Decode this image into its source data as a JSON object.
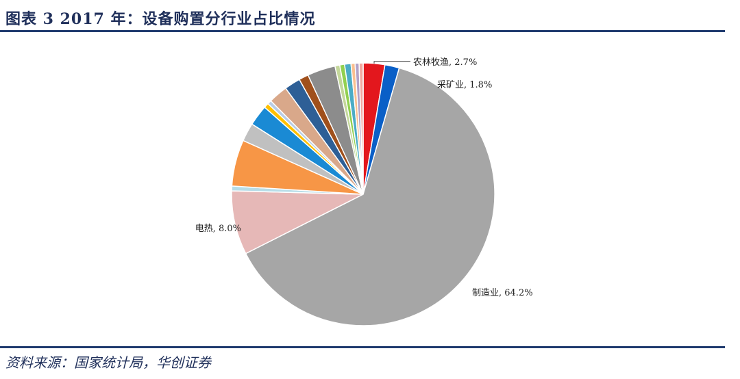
{
  "header": {
    "title": "图表 3   2017 年：设备购置分行业占比情况"
  },
  "footer": {
    "source": "资料来源：国家统计局，华创证券"
  },
  "chart_data": {
    "type": "pie",
    "title": "2017 年：设备购置分行业占比情况",
    "start_direction": "top",
    "direction": "clockwise",
    "slices": [
      {
        "label": "农林牧渔",
        "value": 2.7,
        "label_text": "农林牧渔, 2.7%",
        "color": "#e3171d"
      },
      {
        "label": "采矿业",
        "value": 1.8,
        "label_text": "采矿业, 1.8%",
        "color": "#0a5fc7"
      },
      {
        "label": "制造业",
        "value": 64.2,
        "label_text": "制造业, 64.2%",
        "color": "#a6a6a6"
      },
      {
        "label": "电热",
        "value": 8.0,
        "label_text": "电热, 8.0%",
        "color": "#e6b8b7"
      },
      {
        "label": "",
        "value": 0.6,
        "label_text": "",
        "color": "#b7dde8"
      },
      {
        "label": "",
        "value": 5.8,
        "label_text": "",
        "color": "#f79646"
      },
      {
        "label": "",
        "value": 2.3,
        "label_text": "",
        "color": "#c0c0c0"
      },
      {
        "label": "",
        "value": 2.6,
        "label_text": "",
        "color": "#1a8ad4"
      },
      {
        "label": "",
        "value": 0.6,
        "label_text": "",
        "color": "#ffc000"
      },
      {
        "label": "",
        "value": 0.5,
        "label_text": "",
        "color": "#b9cde5"
      },
      {
        "label": "",
        "value": 2.4,
        "label_text": "",
        "color": "#d9a88a"
      },
      {
        "label": "",
        "value": 2.0,
        "label_text": "",
        "color": "#2e5f96"
      },
      {
        "label": "",
        "value": 1.2,
        "label_text": "",
        "color": "#a0501c"
      },
      {
        "label": "",
        "value": 3.5,
        "label_text": "",
        "color": "#8c8c8c"
      },
      {
        "label": "",
        "value": 0.6,
        "label_text": "",
        "color": "#c4d79b"
      },
      {
        "label": "",
        "value": 0.6,
        "label_text": "",
        "color": "#92d050"
      },
      {
        "label": "",
        "value": 0.8,
        "label_text": "",
        "color": "#4bacc6"
      },
      {
        "label": "",
        "value": 0.5,
        "label_text": "",
        "color": "#fabf8f"
      },
      {
        "label": "",
        "value": 0.5,
        "label_text": "",
        "color": "#b2a2c7"
      },
      {
        "label": "",
        "value": 0.5,
        "label_text": "",
        "color": "#f2a7a0"
      }
    ]
  }
}
